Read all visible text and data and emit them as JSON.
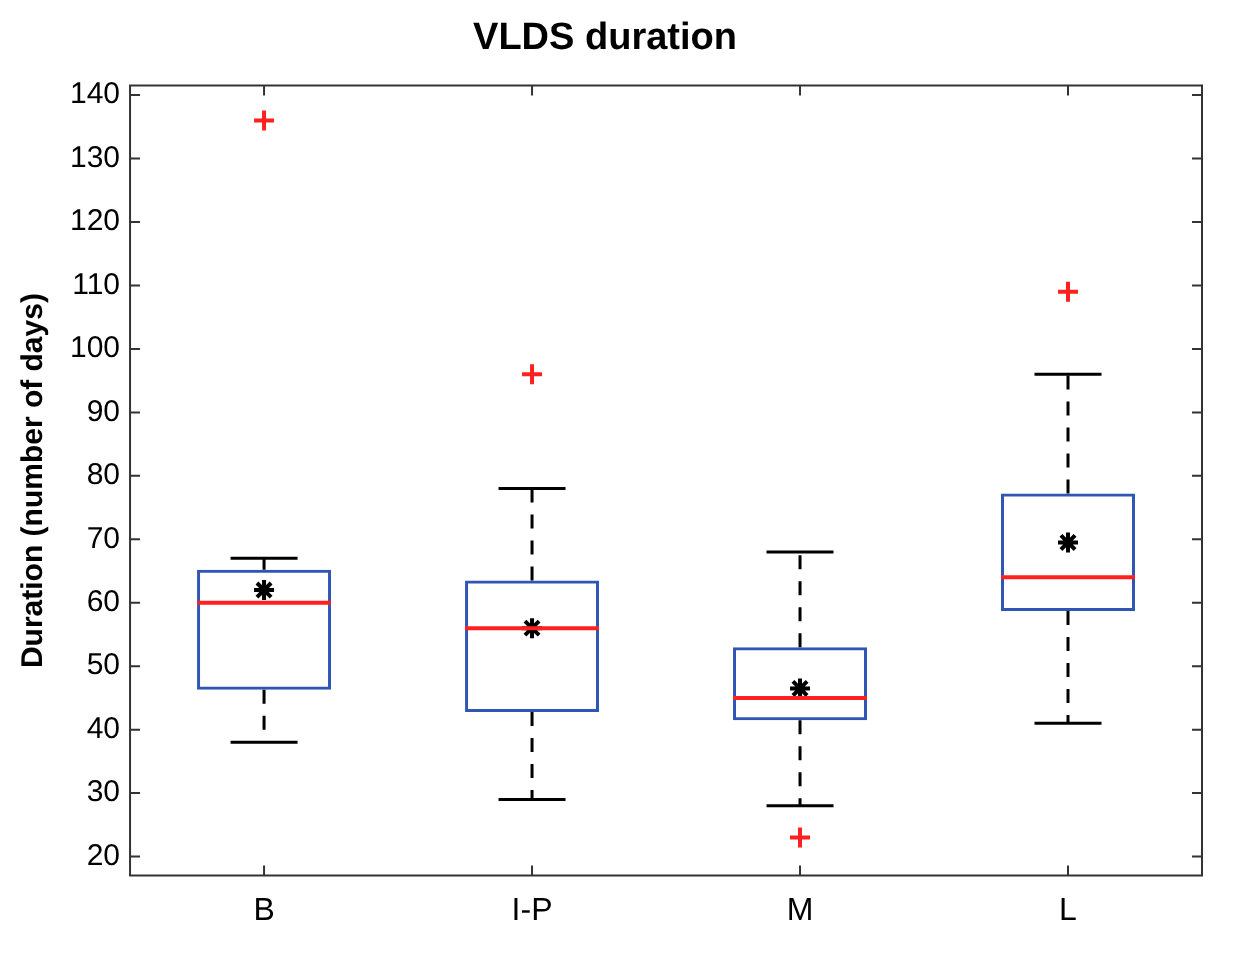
{
  "chart_data": {
    "type": "box",
    "title": "VLDS duration",
    "ylabel": "Duration (number of days)",
    "categories": [
      "B",
      "I-P",
      "M",
      "L"
    ],
    "color": "#2f55b5",
    "boxes": [
      {
        "low": 38,
        "q1": 46.3,
        "median": 60,
        "q3": 65.2,
        "high": 67,
        "mean": 62,
        "outliers": [
          136
        ]
      },
      {
        "low": 29,
        "q1": 42.8,
        "median": 56,
        "q3": 63.5,
        "high": 78,
        "mean": 56,
        "outliers": [
          96
        ]
      },
      {
        "low": 28,
        "q1": 41.5,
        "median": 45,
        "q3": 53,
        "high": 68,
        "mean": 46.5,
        "outliers": [
          23
        ]
      },
      {
        "low": 41,
        "q1": 58.7,
        "median": 64,
        "q3": 77.2,
        "high": 96,
        "mean": 69.5,
        "outliers": [
          109
        ]
      }
    ],
    "ylim": [
      17,
      141.5
    ],
    "yticks": [
      20,
      30,
      40,
      50,
      60,
      70,
      80,
      90,
      100,
      110,
      120,
      130,
      140
    ],
    "grid": false
  }
}
